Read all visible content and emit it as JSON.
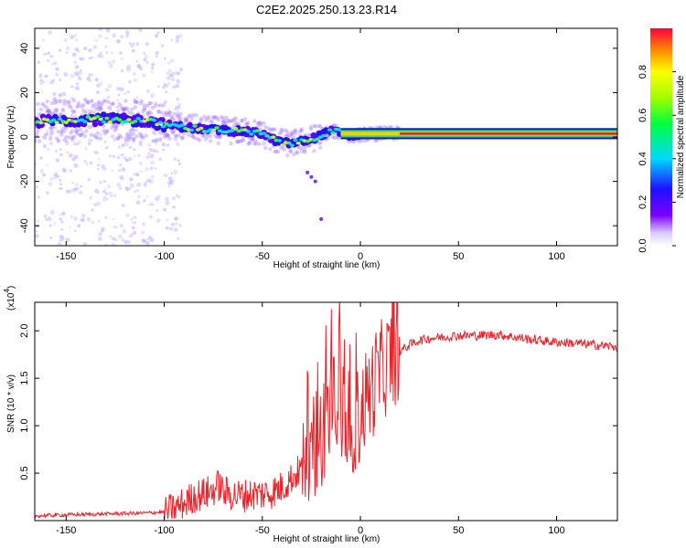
{
  "title": "C2E2.2025.250.13.23.R14",
  "colors": {
    "snr_line": "#e8262a",
    "ridge_core": "#e0103a",
    "frame": "#000000"
  },
  "chart_data": [
    {
      "type": "heatmap",
      "xlabel": "Height of straight line (km)",
      "ylabel": "Frequency (Hz)",
      "xlim": [
        -166,
        131
      ],
      "ylim": [
        -49,
        49
      ],
      "xticks": [
        -150,
        -100,
        -50,
        0,
        50,
        100
      ],
      "xtick_labels": [
        "-150",
        "-100",
        "-50",
        "0",
        "50",
        "100"
      ],
      "yticks": [
        -40,
        -20,
        0,
        20,
        40
      ],
      "ytick_labels": [
        "-40",
        "-20",
        "0",
        "20",
        "40"
      ],
      "colorbar": {
        "label": "Normalized spectral amplitude",
        "range": [
          0,
          1
        ],
        "ticks": [
          0.0,
          0.2,
          0.4,
          0.6,
          0.8
        ],
        "tick_labels": [
          "0.0",
          "0.2",
          "0.4",
          "0.6",
          "0.8"
        ]
      },
      "ridge": {
        "x": [
          -165,
          -150,
          -140,
          -130,
          -120,
          -110,
          -100,
          -90,
          -80,
          -70,
          -60,
          -50,
          -45,
          -40,
          -35,
          -30,
          -25,
          -20,
          -15,
          -10,
          -5,
          0,
          10,
          20,
          30,
          50,
          80,
          100,
          131
        ],
        "frequency": [
          7,
          7.5,
          8,
          8,
          7.5,
          7.5,
          5.5,
          4.5,
          3.5,
          3,
          2.5,
          1.5,
          -1,
          -2.5,
          -3,
          -2,
          -1,
          1,
          2.5,
          2,
          0.5,
          1,
          1.5,
          1.5,
          1.5,
          1.5,
          1.5,
          1.5,
          1.5
        ]
      }
    },
    {
      "type": "line",
      "xlabel": "Height of straight line (km)",
      "ylabel": "SNR (10 * v/v)",
      "yunit_label": "(x10",
      "yunit_exp": "4",
      "yunit_close": ")",
      "xlim": [
        -166,
        131
      ],
      "ylim": [
        0,
        2.3
      ],
      "xticks": [
        -150,
        -100,
        -50,
        0,
        50,
        100
      ],
      "xtick_labels": [
        "-150",
        "-100",
        "-50",
        "0",
        "50",
        "100"
      ],
      "yticks": [
        0.5,
        1.0,
        1.5,
        2.0
      ],
      "ytick_labels": [
        "0.5",
        "1.0",
        "1.5",
        "2.0"
      ],
      "series": [
        {
          "x": [
            -166,
            -150,
            -130,
            -110,
            -100,
            -95,
            -90,
            -85,
            -80,
            -75,
            -72,
            -70,
            -65,
            -60,
            -55,
            -50,
            -45,
            -40,
            -35,
            -30,
            -27,
            -25,
            -22,
            -20,
            -18,
            -15,
            -12,
            -10,
            -8,
            -5,
            -2,
            0,
            2,
            5,
            8,
            10,
            15,
            20,
            25,
            30,
            35,
            40,
            50,
            60,
            70,
            80,
            90,
            100,
            110,
            120,
            131
          ],
          "y": [
            0.05,
            0.06,
            0.07,
            0.08,
            0.09,
            0.12,
            0.18,
            0.25,
            0.28,
            0.32,
            0.38,
            0.3,
            0.27,
            0.26,
            0.28,
            0.28,
            0.3,
            0.35,
            0.45,
            0.55,
            0.75,
            0.7,
            0.9,
            0.85,
            1.0,
            1.2,
            1.25,
            1.3,
            1.1,
            1.0,
            1.05,
            1.1,
            1.25,
            1.35,
            1.5,
            1.55,
            1.7,
            1.78,
            1.85,
            1.9,
            1.92,
            1.93,
            1.95,
            1.95,
            1.96,
            1.93,
            1.9,
            1.88,
            1.87,
            1.85,
            1.83
          ]
        }
      ]
    }
  ]
}
